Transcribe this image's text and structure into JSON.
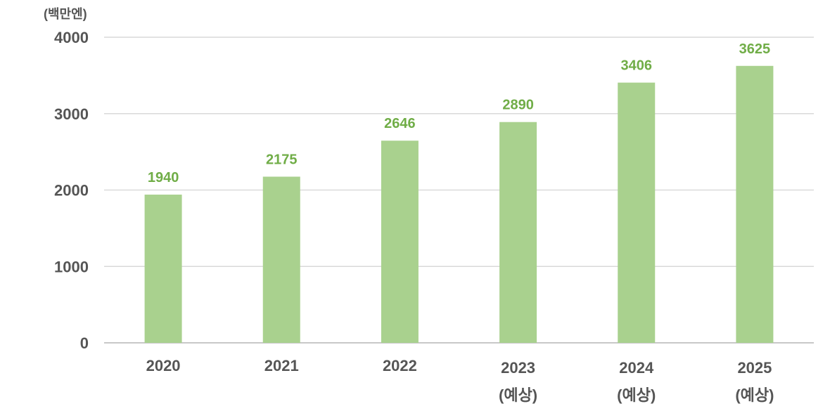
{
  "chart_data": {
    "type": "bar",
    "unit_label": "(백만엔)",
    "categories": [
      "2020",
      "2021",
      "2022",
      "2023",
      "2024",
      "2025"
    ],
    "category_sublabels": [
      "",
      "",
      "",
      "(예상)",
      "(예상)",
      "(예상)"
    ],
    "values": [
      1940,
      2175,
      2646,
      2890,
      3406,
      3625
    ],
    "data_labels": [
      "1940",
      "2175",
      "2646",
      "2890",
      "3406",
      "3625"
    ],
    "y_ticks": [
      0,
      1000,
      2000,
      3000,
      4000
    ],
    "y_tick_labels": [
      "0",
      "1000",
      "2000",
      "3000",
      "4000"
    ],
    "ylim": [
      0,
      4000
    ],
    "grid": true,
    "legend": "none",
    "colors": {
      "bar": "#a9d18e",
      "data_label": "#70ad47",
      "grid": "#d9d9d9",
      "axis_text": "#555555"
    }
  }
}
